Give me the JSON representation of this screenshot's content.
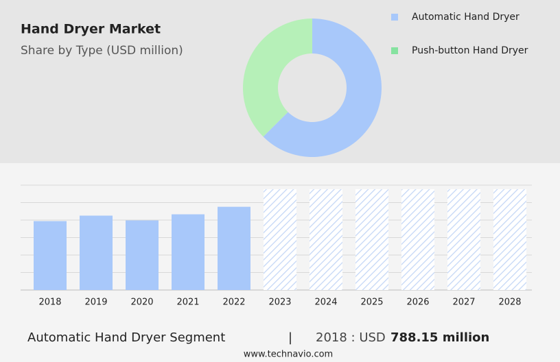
{
  "chart_data": [
    {
      "type": "pie",
      "title": "Hand Dryer Market",
      "subtitle": "Share by Type (USD million)",
      "categories": [
        "Automatic Hand Dryer",
        "Push-button Hand Dryer"
      ],
      "values": [
        62.5,
        37.5
      ],
      "colors": [
        "#a8c8fa",
        "#b6f0b8"
      ],
      "legend_colors": [
        "#a8c8fa",
        "#86e2a0"
      ],
      "legend": "top-right",
      "donut": true
    },
    {
      "type": "bar",
      "categories": [
        "2018",
        "2019",
        "2020",
        "2021",
        "2022",
        "2023",
        "2024",
        "2025",
        "2026",
        "2027",
        "2028"
      ],
      "values": [
        788.15,
        851,
        796,
        866,
        952,
        null,
        null,
        null,
        null,
        null,
        null
      ],
      "color": "#a8c8fa",
      "forecast_color": "#c3d6f6",
      "ylim": [
        0,
        1200
      ],
      "grid": true
    }
  ],
  "footer": {
    "segment": "Automatic Hand Dryer Segment",
    "separator": "|",
    "year_label": "2018 : USD",
    "value_label": "788.15 million",
    "source": "www.technavio.com"
  }
}
